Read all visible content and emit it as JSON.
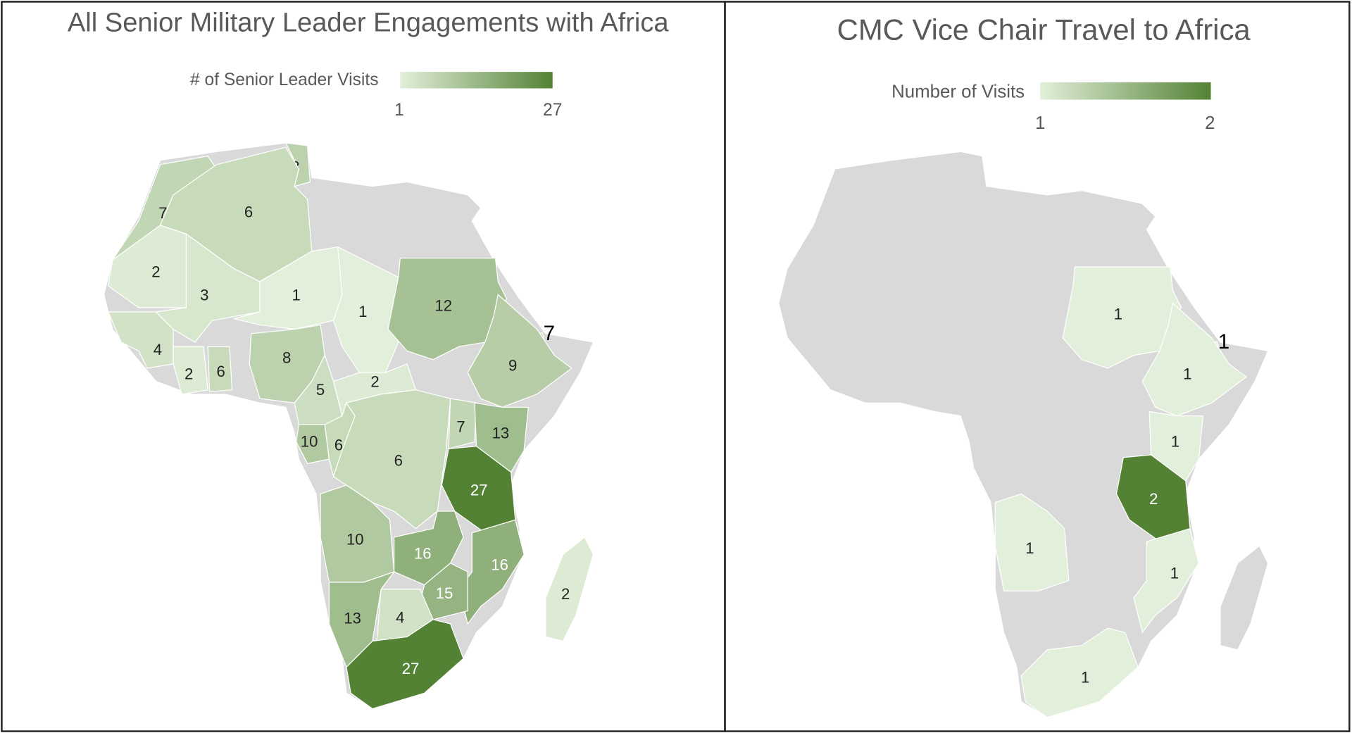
{
  "panels": [
    {
      "title": "All Senior Military Leader Engagements with Africa",
      "legend": {
        "label": "# of Senior Leader Visits",
        "range": [
          1,
          27
        ],
        "colors": [
          "#e2efda",
          "#548235"
        ]
      },
      "values": [
        8,
        7,
        6,
        2,
        3,
        1,
        1,
        12,
        7,
        4,
        2,
        6,
        8,
        5,
        2,
        9,
        10,
        6,
        6,
        7,
        13,
        27,
        10,
        16,
        16,
        15,
        13,
        4,
        27,
        2
      ]
    },
    {
      "title": "CMC Vice Chair Travel to Africa",
      "legend": {
        "label": "Number of Visits",
        "range": [
          1,
          2
        ],
        "colors": [
          "#e2efda",
          "#548235"
        ]
      },
      "values": [
        1,
        1,
        1,
        1,
        2,
        1,
        1,
        1
      ]
    }
  ]
}
